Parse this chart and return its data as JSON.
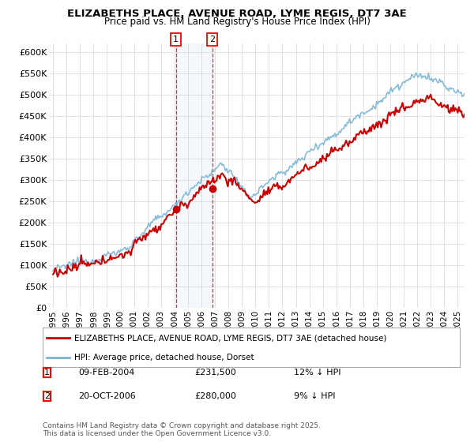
{
  "title": "ELIZABETHS PLACE, AVENUE ROAD, LYME REGIS, DT7 3AE",
  "subtitle": "Price paid vs. HM Land Registry's House Price Index (HPI)",
  "ylabel_vals": [
    0,
    50000,
    100000,
    150000,
    200000,
    250000,
    300000,
    350000,
    400000,
    450000,
    500000,
    550000,
    600000
  ],
  "ylabel_labels": [
    "£0",
    "£50K",
    "£100K",
    "£150K",
    "£200K",
    "£250K",
    "£300K",
    "£350K",
    "£400K",
    "£450K",
    "£500K",
    "£550K",
    "£600K"
  ],
  "hpi_color": "#7ab4d8",
  "price_color": "#cc0000",
  "marker1_date": "09-FEB-2004",
  "marker1_price": 231500,
  "marker1_hpi_diff": "12% ↓ HPI",
  "marker2_date": "20-OCT-2006",
  "marker2_price": 280000,
  "marker2_hpi_diff": "9% ↓ HPI",
  "legend_label1": "ELIZABETHS PLACE, AVENUE ROAD, LYME REGIS, DT7 3AE (detached house)",
  "legend_label2": "HPI: Average price, detached house, Dorset",
  "footer": "Contains HM Land Registry data © Crown copyright and database right 2025.\nThis data is licensed under the Open Government Licence v3.0.",
  "background_color": "#ffffff",
  "plot_bg_color": "#ffffff",
  "grid_color": "#cccccc",
  "sale1_year": 2004.1,
  "sale2_year": 2006.8,
  "xmin": 1995.0,
  "xmax": 2025.5,
  "ymin": 0,
  "ymax": 600000
}
